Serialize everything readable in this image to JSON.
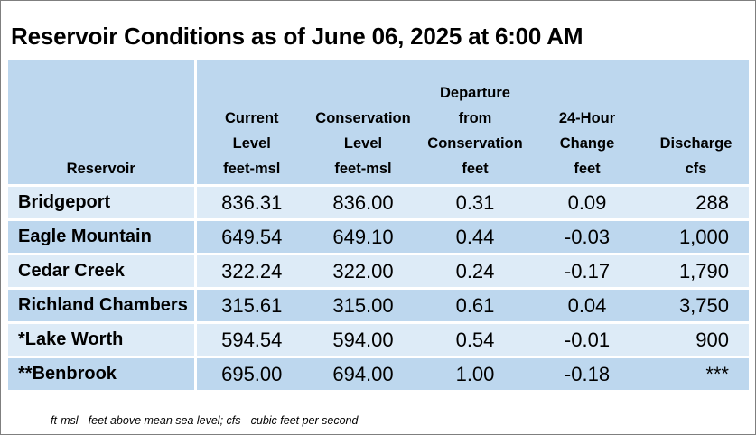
{
  "title": "Reservoir Conditions as of June 06, 2025 at 6:00 AM",
  "columns": [
    {
      "lines": [
        "Reservoir"
      ]
    },
    {
      "lines": [
        "Current",
        "Level",
        "feet-msl"
      ]
    },
    {
      "lines": [
        "Conservation",
        "Level",
        "feet-msl"
      ]
    },
    {
      "lines": [
        "Departure",
        "from",
        "Conservation",
        "feet"
      ]
    },
    {
      "lines": [
        "24-Hour",
        "Change",
        "feet"
      ]
    },
    {
      "lines": [
        "Discharge",
        "cfs"
      ]
    }
  ],
  "rows": [
    {
      "reservoir": "Bridgeport",
      "current": "836.31",
      "conservation": "836.00",
      "departure": "0.31",
      "change": "0.09",
      "discharge": "288"
    },
    {
      "reservoir": "Eagle Mountain",
      "current": "649.54",
      "conservation": "649.10",
      "departure": "0.44",
      "change": "-0.03",
      "discharge": "1,000"
    },
    {
      "reservoir": "Cedar Creek",
      "current": "322.24",
      "conservation": "322.00",
      "departure": "0.24",
      "change": "-0.17",
      "discharge": "1,790"
    },
    {
      "reservoir": "Richland Chambers",
      "current": "315.61",
      "conservation": "315.00",
      "departure": "0.61",
      "change": "0.04",
      "discharge": "3,750"
    },
    {
      "reservoir": "*Lake Worth",
      "current": "594.54",
      "conservation": "594.00",
      "departure": "0.54",
      "change": "-0.01",
      "discharge": "900"
    },
    {
      "reservoir": "**Benbrook",
      "current": "695.00",
      "conservation": "694.00",
      "departure": "1.00",
      "change": "-0.18",
      "discharge": "***"
    }
  ],
  "footnote": "ft-msl - feet above mean sea level; cfs - cubic feet per second",
  "colors": {
    "header_bg": "#bdd7ee",
    "row_light": "#ddebf7",
    "row_dark": "#bdd7ee"
  }
}
